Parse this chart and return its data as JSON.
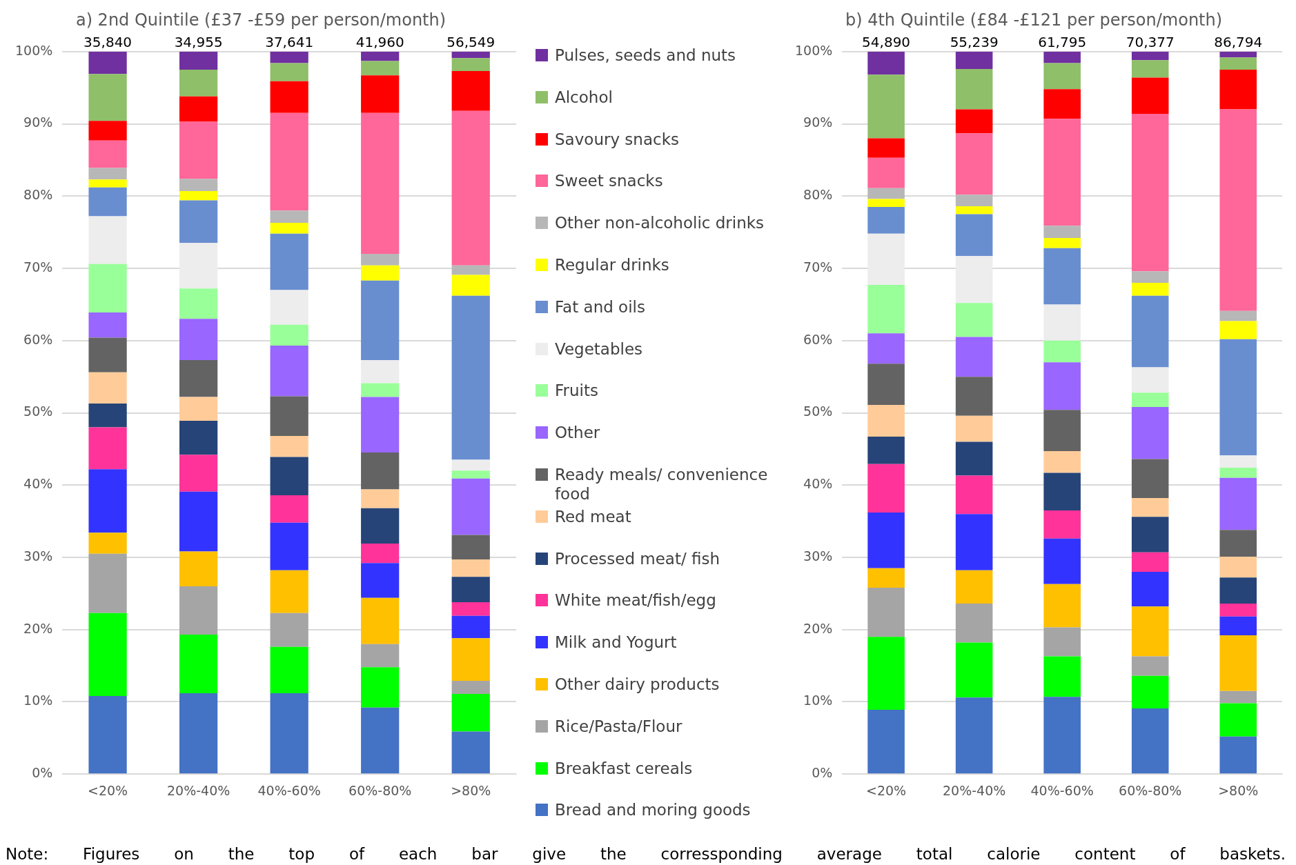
{
  "chart_data": [
    {
      "type": "bar",
      "title": "a) 2nd Quintile (£37 -£59 per person/month)",
      "categories": [
        "<20%",
        "20%-40%",
        "40%-60%",
        "60%-80%",
        ">80%"
      ],
      "stacked": true,
      "ylim": [
        0,
        100
      ],
      "yticks": [
        {
          "value": 0,
          "label": "0%"
        },
        {
          "value": 10,
          "label": "10%"
        },
        {
          "value": 20,
          "label": "20%"
        },
        {
          "value": 30,
          "label": "30%"
        },
        {
          "value": 40,
          "label": "40%"
        },
        {
          "value": 50,
          "label": "50%"
        },
        {
          "value": 60,
          "label": "60%"
        },
        {
          "value": 70,
          "label": "70%"
        },
        {
          "value": 80,
          "label": "80%"
        },
        {
          "value": 90,
          "label": "90%"
        },
        {
          "value": 100,
          "label": "100%"
        }
      ],
      "grid": "y",
      "legend": "right",
      "annotations": [
        "Note: Figures on the top of each bar give the corressponding average total calorie content of baskets.",
        {
          "text": "35,840",
          "x": "<20%",
          "y": 100
        },
        {
          "text": "34,955",
          "x": "20%-40%",
          "y": 100
        },
        {
          "text": "37,641",
          "x": "40%-60%",
          "y": 100
        },
        {
          "text": "41,960",
          "x": "60%-80%",
          "y": 100
        },
        {
          "text": "56,549",
          "x": ">80%",
          "y": 100
        }
      ],
      "series": [
        {
          "name": "Bread and moring goods",
          "color": "#4472c4",
          "values": [
            10.8,
            11.2,
            11.2,
            9.2,
            5.9
          ]
        },
        {
          "name": "Breakfast cereals",
          "color": "#00ff00",
          "values": [
            11.5,
            8.1,
            6.4,
            5.6,
            5.2
          ]
        },
        {
          "name": "Rice/Pasta/Flour",
          "color": "#a5a5a5",
          "values": [
            8.2,
            6.7,
            4.7,
            3.2,
            1.8
          ]
        },
        {
          "name": "Other dairy products",
          "color": "#ffc000",
          "values": [
            2.9,
            4.8,
            5.9,
            6.4,
            5.9
          ]
        },
        {
          "name": "Milk and Yogurt",
          "color": "#3333ff",
          "values": [
            8.8,
            8.3,
            6.6,
            4.8,
            3.1
          ]
        },
        {
          "name": "White meat/fish/egg",
          "color": "#ff3399",
          "values": [
            5.8,
            5.1,
            3.8,
            2.7,
            1.9
          ]
        },
        {
          "name": "Processed meat/ fish",
          "color": "#264478",
          "values": [
            3.3,
            4.7,
            5.3,
            4.9,
            3.5
          ]
        },
        {
          "name": "Red meat",
          "color": "#ffcc99",
          "values": [
            4.3,
            3.3,
            2.9,
            2.6,
            2.4
          ]
        },
        {
          "name": "Ready meals/ convenience food",
          "color": "#636363",
          "values": [
            4.8,
            5.1,
            5.5,
            5.1,
            3.4
          ]
        },
        {
          "name": "Other",
          "color": "#9966ff",
          "values": [
            3.5,
            5.7,
            7.0,
            7.7,
            7.8
          ]
        },
        {
          "name": "Fruits",
          "color": "#99ff99",
          "values": [
            6.7,
            4.2,
            2.9,
            1.9,
            1.1
          ]
        },
        {
          "name": "Vegetables",
          "color": "#ededed",
          "values": [
            6.6,
            6.3,
            4.8,
            3.2,
            1.5
          ]
        },
        {
          "name": "Fat and oils",
          "color": "#698ed0",
          "values": [
            4.0,
            5.9,
            7.8,
            11.0,
            22.7
          ]
        },
        {
          "name": "Regular drinks",
          "color": "#ffff00",
          "values": [
            1.1,
            1.3,
            1.5,
            2.1,
            2.9
          ]
        },
        {
          "name": "Other non-alcoholic drinks",
          "color": "#b7b7b7",
          "values": [
            1.6,
            1.7,
            1.7,
            1.6,
            1.3
          ]
        },
        {
          "name": "Sweet snacks",
          "color": "#ff6699",
          "values": [
            3.8,
            7.9,
            13.5,
            19.5,
            21.4
          ]
        },
        {
          "name": "Savoury snacks",
          "color": "#ff0000",
          "values": [
            2.7,
            3.5,
            4.4,
            5.2,
            5.5
          ]
        },
        {
          "name": "Alcohol",
          "color": "#8fbf69",
          "values": [
            6.5,
            3.7,
            2.5,
            2.0,
            1.8
          ]
        },
        {
          "name": "Pulses, seeds and nuts",
          "color": "#7030a0",
          "values": [
            3.1,
            2.5,
            1.6,
            1.3,
            0.9
          ]
        }
      ]
    },
    {
      "type": "bar",
      "title": "b) 4th Quintile (£84 -£121 per person/month)",
      "categories": [
        "<20%",
        "20%-40%",
        "40%-60%",
        "60%-80%",
        ">80%"
      ],
      "stacked": true,
      "ylim": [
        0,
        100
      ],
      "yticks": [
        {
          "value": 0,
          "label": "0%"
        },
        {
          "value": 10,
          "label": "10%"
        },
        {
          "value": 20,
          "label": "20%"
        },
        {
          "value": 30,
          "label": "30%"
        },
        {
          "value": 40,
          "label": "40%"
        },
        {
          "value": 50,
          "label": "50%"
        },
        {
          "value": 60,
          "label": "60%"
        },
        {
          "value": 70,
          "label": "70%"
        },
        {
          "value": 80,
          "label": "80%"
        },
        {
          "value": 90,
          "label": "90%"
        },
        {
          "value": 100,
          "label": "100%"
        }
      ],
      "grid": "y",
      "annotations": [
        {
          "text": "54,890",
          "x": "<20%",
          "y": 100
        },
        {
          "text": "55,239",
          "x": "20%-40%",
          "y": 100
        },
        {
          "text": "61,795",
          "x": "40%-60%",
          "y": 100
        },
        {
          "text": "70,377",
          "x": "60%-80%",
          "y": 100
        },
        {
          "text": "86,794",
          "x": ">80%",
          "y": 100
        }
      ],
      "series": [
        {
          "color": "#4472c4",
          "values": [
            8.9,
            10.6,
            10.7,
            9.1,
            5.2
          ]
        },
        {
          "color": "#00ff00",
          "values": [
            10.1,
            7.6,
            5.6,
            4.5,
            4.6
          ]
        },
        {
          "color": "#a5a5a5",
          "values": [
            6.8,
            5.4,
            4.0,
            2.7,
            1.7
          ]
        },
        {
          "color": "#ffc000",
          "values": [
            2.7,
            4.6,
            6.0,
            6.9,
            7.7
          ]
        },
        {
          "color": "#3333ff",
          "values": [
            7.7,
            7.8,
            6.3,
            4.8,
            2.6
          ]
        },
        {
          "color": "#ff3399",
          "values": [
            6.7,
            5.3,
            3.9,
            2.7,
            1.8
          ]
        },
        {
          "color": "#264478",
          "values": [
            3.8,
            4.7,
            5.2,
            4.9,
            3.6
          ]
        },
        {
          "color": "#ffcc99",
          "values": [
            4.4,
            3.6,
            3.0,
            2.6,
            2.9
          ]
        },
        {
          "color": "#636363",
          "values": [
            5.7,
            5.4,
            5.7,
            5.4,
            3.7
          ]
        },
        {
          "color": "#9966ff",
          "values": [
            4.2,
            5.5,
            6.6,
            7.2,
            7.2
          ]
        },
        {
          "color": "#99ff99",
          "values": [
            6.7,
            4.7,
            3.0,
            2.0,
            1.4
          ]
        },
        {
          "color": "#ededed",
          "values": [
            7.1,
            6.5,
            5.0,
            3.5,
            1.7
          ]
        },
        {
          "color": "#698ed0",
          "values": [
            3.7,
            5.8,
            7.8,
            9.9,
            16.1
          ]
        },
        {
          "color": "#ffff00",
          "values": [
            1.1,
            1.1,
            1.4,
            1.8,
            2.5
          ]
        },
        {
          "color": "#b7b7b7",
          "values": [
            1.5,
            1.6,
            1.7,
            1.6,
            1.4
          ]
        },
        {
          "color": "#ff6699",
          "values": [
            4.2,
            8.5,
            14.8,
            21.8,
            27.9
          ]
        },
        {
          "color": "#ff0000",
          "values": [
            2.7,
            3.3,
            4.1,
            5.0,
            5.5
          ]
        },
        {
          "color": "#8fbf69",
          "values": [
            8.8,
            5.6,
            3.6,
            2.4,
            1.7
          ]
        },
        {
          "color": "#7030a0",
          "values": [
            3.2,
            2.4,
            1.6,
            1.2,
            0.8
          ]
        }
      ]
    }
  ]
}
